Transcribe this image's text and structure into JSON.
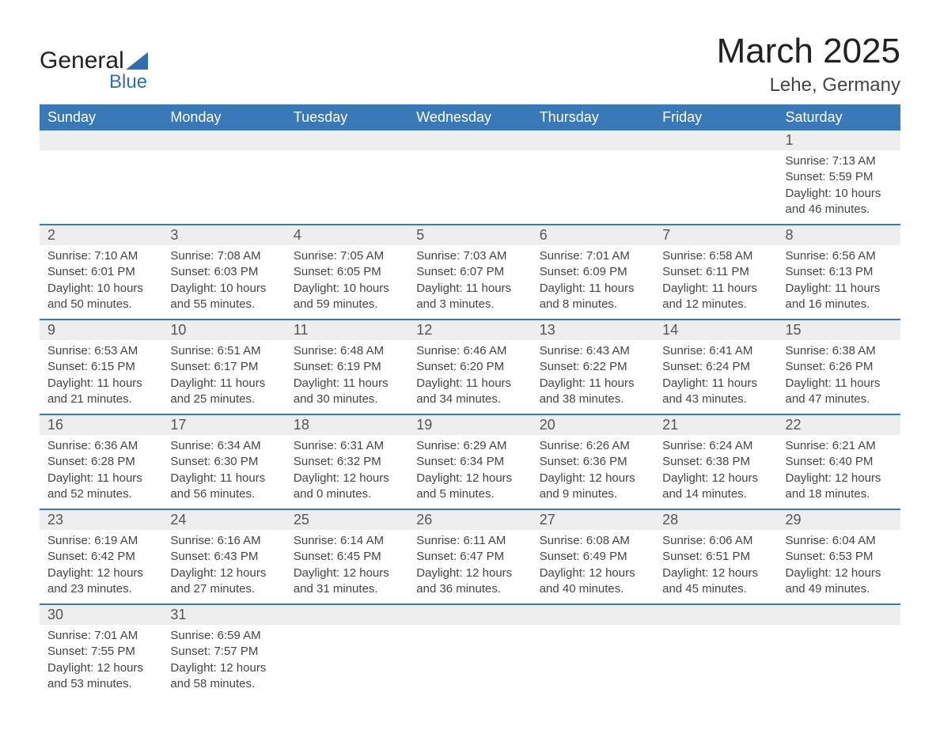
{
  "logo": {
    "text1": "General",
    "text2": "Blue",
    "accent_color": "#2f6fb0"
  },
  "title": "March 2025",
  "location": "Lehe, Germany",
  "header_bg": "#3a79b7",
  "header_fg": "#ffffff",
  "daynum_bg": "#eeeeee",
  "border_color": "#3a79b7",
  "weekdays": [
    "Sunday",
    "Monday",
    "Tuesday",
    "Wednesday",
    "Thursday",
    "Friday",
    "Saturday"
  ],
  "weeks": [
    {
      "days": [
        {
          "num": "",
          "sunrise": "",
          "sunset": "",
          "daylight": ""
        },
        {
          "num": "",
          "sunrise": "",
          "sunset": "",
          "daylight": ""
        },
        {
          "num": "",
          "sunrise": "",
          "sunset": "",
          "daylight": ""
        },
        {
          "num": "",
          "sunrise": "",
          "sunset": "",
          "daylight": ""
        },
        {
          "num": "",
          "sunrise": "",
          "sunset": "",
          "daylight": ""
        },
        {
          "num": "",
          "sunrise": "",
          "sunset": "",
          "daylight": ""
        },
        {
          "num": "1",
          "sunrise": "Sunrise: 7:13 AM",
          "sunset": "Sunset: 5:59 PM",
          "daylight": "Daylight: 10 hours and 46 minutes."
        }
      ]
    },
    {
      "days": [
        {
          "num": "2",
          "sunrise": "Sunrise: 7:10 AM",
          "sunset": "Sunset: 6:01 PM",
          "daylight": "Daylight: 10 hours and 50 minutes."
        },
        {
          "num": "3",
          "sunrise": "Sunrise: 7:08 AM",
          "sunset": "Sunset: 6:03 PM",
          "daylight": "Daylight: 10 hours and 55 minutes."
        },
        {
          "num": "4",
          "sunrise": "Sunrise: 7:05 AM",
          "sunset": "Sunset: 6:05 PM",
          "daylight": "Daylight: 10 hours and 59 minutes."
        },
        {
          "num": "5",
          "sunrise": "Sunrise: 7:03 AM",
          "sunset": "Sunset: 6:07 PM",
          "daylight": "Daylight: 11 hours and 3 minutes."
        },
        {
          "num": "6",
          "sunrise": "Sunrise: 7:01 AM",
          "sunset": "Sunset: 6:09 PM",
          "daylight": "Daylight: 11 hours and 8 minutes."
        },
        {
          "num": "7",
          "sunrise": "Sunrise: 6:58 AM",
          "sunset": "Sunset: 6:11 PM",
          "daylight": "Daylight: 11 hours and 12 minutes."
        },
        {
          "num": "8",
          "sunrise": "Sunrise: 6:56 AM",
          "sunset": "Sunset: 6:13 PM",
          "daylight": "Daylight: 11 hours and 16 minutes."
        }
      ]
    },
    {
      "days": [
        {
          "num": "9",
          "sunrise": "Sunrise: 6:53 AM",
          "sunset": "Sunset: 6:15 PM",
          "daylight": "Daylight: 11 hours and 21 minutes."
        },
        {
          "num": "10",
          "sunrise": "Sunrise: 6:51 AM",
          "sunset": "Sunset: 6:17 PM",
          "daylight": "Daylight: 11 hours and 25 minutes."
        },
        {
          "num": "11",
          "sunrise": "Sunrise: 6:48 AM",
          "sunset": "Sunset: 6:19 PM",
          "daylight": "Daylight: 11 hours and 30 minutes."
        },
        {
          "num": "12",
          "sunrise": "Sunrise: 6:46 AM",
          "sunset": "Sunset: 6:20 PM",
          "daylight": "Daylight: 11 hours and 34 minutes."
        },
        {
          "num": "13",
          "sunrise": "Sunrise: 6:43 AM",
          "sunset": "Sunset: 6:22 PM",
          "daylight": "Daylight: 11 hours and 38 minutes."
        },
        {
          "num": "14",
          "sunrise": "Sunrise: 6:41 AM",
          "sunset": "Sunset: 6:24 PM",
          "daylight": "Daylight: 11 hours and 43 minutes."
        },
        {
          "num": "15",
          "sunrise": "Sunrise: 6:38 AM",
          "sunset": "Sunset: 6:26 PM",
          "daylight": "Daylight: 11 hours and 47 minutes."
        }
      ]
    },
    {
      "days": [
        {
          "num": "16",
          "sunrise": "Sunrise: 6:36 AM",
          "sunset": "Sunset: 6:28 PM",
          "daylight": "Daylight: 11 hours and 52 minutes."
        },
        {
          "num": "17",
          "sunrise": "Sunrise: 6:34 AM",
          "sunset": "Sunset: 6:30 PM",
          "daylight": "Daylight: 11 hours and 56 minutes."
        },
        {
          "num": "18",
          "sunrise": "Sunrise: 6:31 AM",
          "sunset": "Sunset: 6:32 PM",
          "daylight": "Daylight: 12 hours and 0 minutes."
        },
        {
          "num": "19",
          "sunrise": "Sunrise: 6:29 AM",
          "sunset": "Sunset: 6:34 PM",
          "daylight": "Daylight: 12 hours and 5 minutes."
        },
        {
          "num": "20",
          "sunrise": "Sunrise: 6:26 AM",
          "sunset": "Sunset: 6:36 PM",
          "daylight": "Daylight: 12 hours and 9 minutes."
        },
        {
          "num": "21",
          "sunrise": "Sunrise: 6:24 AM",
          "sunset": "Sunset: 6:38 PM",
          "daylight": "Daylight: 12 hours and 14 minutes."
        },
        {
          "num": "22",
          "sunrise": "Sunrise: 6:21 AM",
          "sunset": "Sunset: 6:40 PM",
          "daylight": "Daylight: 12 hours and 18 minutes."
        }
      ]
    },
    {
      "days": [
        {
          "num": "23",
          "sunrise": "Sunrise: 6:19 AM",
          "sunset": "Sunset: 6:42 PM",
          "daylight": "Daylight: 12 hours and 23 minutes."
        },
        {
          "num": "24",
          "sunrise": "Sunrise: 6:16 AM",
          "sunset": "Sunset: 6:43 PM",
          "daylight": "Daylight: 12 hours and 27 minutes."
        },
        {
          "num": "25",
          "sunrise": "Sunrise: 6:14 AM",
          "sunset": "Sunset: 6:45 PM",
          "daylight": "Daylight: 12 hours and 31 minutes."
        },
        {
          "num": "26",
          "sunrise": "Sunrise: 6:11 AM",
          "sunset": "Sunset: 6:47 PM",
          "daylight": "Daylight: 12 hours and 36 minutes."
        },
        {
          "num": "27",
          "sunrise": "Sunrise: 6:08 AM",
          "sunset": "Sunset: 6:49 PM",
          "daylight": "Daylight: 12 hours and 40 minutes."
        },
        {
          "num": "28",
          "sunrise": "Sunrise: 6:06 AM",
          "sunset": "Sunset: 6:51 PM",
          "daylight": "Daylight: 12 hours and 45 minutes."
        },
        {
          "num": "29",
          "sunrise": "Sunrise: 6:04 AM",
          "sunset": "Sunset: 6:53 PM",
          "daylight": "Daylight: 12 hours and 49 minutes."
        }
      ]
    },
    {
      "days": [
        {
          "num": "30",
          "sunrise": "Sunrise: 7:01 AM",
          "sunset": "Sunset: 7:55 PM",
          "daylight": "Daylight: 12 hours and 53 minutes."
        },
        {
          "num": "31",
          "sunrise": "Sunrise: 6:59 AM",
          "sunset": "Sunset: 7:57 PM",
          "daylight": "Daylight: 12 hours and 58 minutes."
        },
        {
          "num": "",
          "sunrise": "",
          "sunset": "",
          "daylight": ""
        },
        {
          "num": "",
          "sunrise": "",
          "sunset": "",
          "daylight": ""
        },
        {
          "num": "",
          "sunrise": "",
          "sunset": "",
          "daylight": ""
        },
        {
          "num": "",
          "sunrise": "",
          "sunset": "",
          "daylight": ""
        },
        {
          "num": "",
          "sunrise": "",
          "sunset": "",
          "daylight": ""
        }
      ]
    }
  ]
}
